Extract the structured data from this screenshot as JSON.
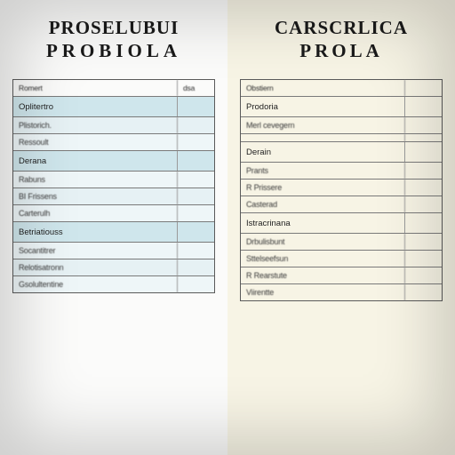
{
  "left": {
    "heading_line1": "PROSELUBUI",
    "heading_line2": "PROBIOLA",
    "background": "#fbfbfa",
    "section_bg": "#cfe6ec",
    "row_bg": "#eef6f8",
    "header": {
      "col1": "Romert",
      "col2": "dsa"
    },
    "groups": [
      {
        "title": "Oplitertro",
        "rows": [
          {
            "c1": "Plistorich.",
            "c2": ""
          },
          {
            "c1": "Ressoult",
            "c2": ""
          }
        ]
      },
      {
        "title": "Derana",
        "rows": [
          {
            "c1": "Rabuns",
            "c2": ""
          },
          {
            "c1": "BI Frissens",
            "c2": ""
          },
          {
            "c1": "Carterulh",
            "c2": ""
          }
        ]
      },
      {
        "title": "Betriatiouss",
        "rows": [
          {
            "c1": "Socantitrer",
            "c2": ""
          },
          {
            "c1": "Relotisatronn",
            "c2": ""
          },
          {
            "c1": "Gsolultentine",
            "c2": ""
          }
        ]
      }
    ]
  },
  "right": {
    "heading_line1": "CARSCRLICA",
    "heading_line2": "PROLA",
    "background": "#f7f4e5",
    "section_bg": "#f7f4e5",
    "header": {
      "col1": "Obstiern",
      "col2": ""
    },
    "groups": [
      {
        "title": "Prodoria",
        "rows": [
          {
            "c1": "Merl  cevegern",
            "c2": ""
          },
          {
            "c1": "",
            "c2": ""
          }
        ]
      },
      {
        "title": "Derain",
        "rows": [
          {
            "c1": "Prants",
            "c2": ""
          },
          {
            "c1": "R  Prissere",
            "c2": ""
          },
          {
            "c1": "Casterad",
            "c2": ""
          }
        ]
      },
      {
        "title": "Istracrinana",
        "rows": [
          {
            "c1": "Drbulisbunt",
            "c2": ""
          },
          {
            "c1": "Sttelseefsun",
            "c2": ""
          },
          {
            "c1": "R Rearstute",
            "c2": ""
          },
          {
            "c1": "Viirentte",
            "c2": ""
          }
        ]
      }
    ]
  },
  "style": {
    "heading_color": "#1a1a1a",
    "border_color": "#5a5a5a",
    "text_color": "#3a3a3a",
    "heading_fontsize_pt": 16,
    "cell_fontsize_pt": 7,
    "font_heading": "Georgia, serif",
    "font_body": "Arial, sans-serif"
  }
}
